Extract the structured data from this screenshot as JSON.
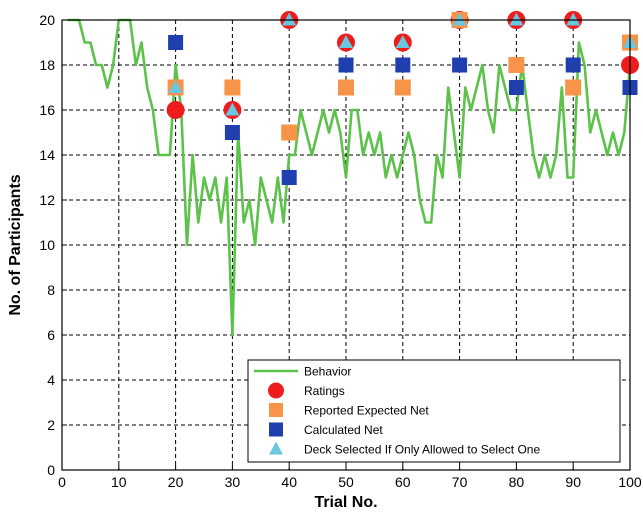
{
  "chart_data": {
    "type": "line",
    "xlabel": "Trial No.",
    "ylabel": "No. of Participants",
    "xlim": [
      0,
      100
    ],
    "ylim": [
      0,
      20
    ],
    "xticks": [
      0,
      10,
      20,
      30,
      40,
      50,
      60,
      70,
      80,
      90,
      100
    ],
    "yticks": [
      0,
      2,
      4,
      6,
      8,
      10,
      12,
      14,
      16,
      18,
      20
    ],
    "grid": true,
    "legend_position": "bottom-right",
    "colors": {
      "behavior": "#5cc24a",
      "ratings": "#ee1c1c",
      "reported": "#f7944a",
      "calculated": "#1f3fae",
      "deck": "#67c8e0"
    },
    "series": [
      {
        "name": "Behavior",
        "kind": "line",
        "x": [
          1,
          2,
          3,
          4,
          5,
          6,
          7,
          8,
          9,
          10,
          11,
          12,
          13,
          14,
          15,
          16,
          17,
          18,
          19,
          20,
          21,
          22,
          23,
          24,
          25,
          26,
          27,
          28,
          29,
          30,
          31,
          32,
          33,
          34,
          35,
          36,
          37,
          38,
          39,
          40,
          41,
          42,
          43,
          44,
          45,
          46,
          47,
          48,
          49,
          50,
          51,
          52,
          53,
          54,
          55,
          56,
          57,
          58,
          59,
          60,
          61,
          62,
          63,
          64,
          65,
          66,
          67,
          68,
          69,
          70,
          71,
          72,
          73,
          74,
          75,
          76,
          77,
          78,
          79,
          80,
          81,
          82,
          83,
          84,
          85,
          86,
          87,
          88,
          89,
          90,
          91,
          92,
          93,
          94,
          95,
          96,
          97,
          98,
          99,
          100
        ],
        "values": [
          20,
          20,
          20,
          19,
          19,
          18,
          18,
          17,
          18,
          20,
          20,
          20,
          18,
          19,
          17,
          16,
          14,
          14,
          14,
          18,
          16,
          10,
          14,
          11,
          13,
          12,
          13,
          11,
          13,
          6,
          15,
          11,
          12,
          10,
          13,
          12,
          11,
          13,
          11,
          14,
          14,
          16,
          15,
          14,
          15,
          16,
          15,
          16,
          15,
          13,
          16,
          16,
          14,
          15,
          14,
          15,
          13,
          14,
          13,
          14,
          15,
          14,
          12,
          11,
          11,
          14,
          13,
          17,
          15,
          13,
          17,
          16,
          17,
          18,
          16,
          15,
          18,
          17,
          16,
          16,
          18,
          16,
          14,
          13,
          14,
          13,
          14,
          17,
          13,
          13,
          19,
          18,
          15,
          16,
          15,
          14,
          15,
          14,
          15,
          18
        ]
      },
      {
        "name": "Ratings",
        "kind": "marker",
        "marker": "circle",
        "x": [
          20,
          30,
          40,
          50,
          60,
          70,
          80,
          90,
          100
        ],
        "values": [
          16,
          16,
          20,
          19,
          19,
          20,
          20,
          20,
          18
        ]
      },
      {
        "name": "Reported Expected Net",
        "kind": "marker",
        "marker": "square",
        "x": [
          20,
          30,
          40,
          50,
          60,
          70,
          80,
          90,
          100
        ],
        "values": [
          17,
          17,
          15,
          17,
          17,
          20,
          18,
          17,
          19
        ]
      },
      {
        "name": "Calculated Net",
        "kind": "marker",
        "marker": "square",
        "x": [
          20,
          30,
          40,
          50,
          60,
          70,
          80,
          90,
          100
        ],
        "values": [
          19,
          15,
          13,
          18,
          18,
          18,
          17,
          18,
          17
        ]
      },
      {
        "name": "Deck Selected If Only Allowed to Select One",
        "kind": "marker",
        "marker": "triangle",
        "x": [
          20,
          30,
          40,
          50,
          60,
          70,
          80,
          90,
          100
        ],
        "values": [
          17,
          16,
          20,
          19,
          19,
          20,
          20,
          20,
          19
        ]
      }
    ]
  }
}
